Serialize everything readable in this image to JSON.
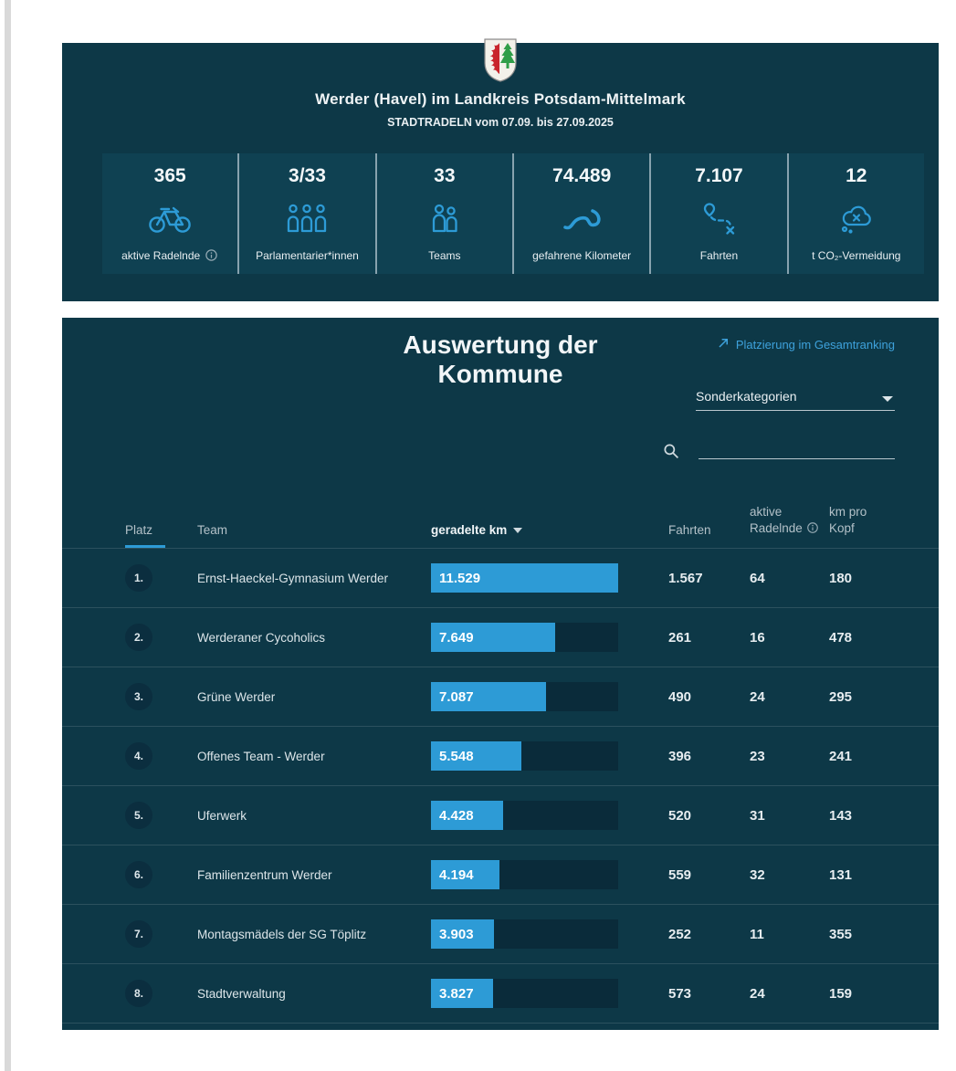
{
  "summary_card": {
    "crest": "werder-havel-coat-of-arms",
    "title": "Werder (Havel) im Landkreis Potsdam-Mittelmark",
    "subtitle": "STADTRADELN vom 07.09. bis 27.09.2025",
    "tiles": [
      {
        "value": "365",
        "label": "aktive Radelnde",
        "icon": "bicycle-icon",
        "info": true
      },
      {
        "value": "3/33",
        "label": "Parlamentarier*innen",
        "icon": "parliamentarians-icon",
        "info": false
      },
      {
        "value": "33",
        "label": "Teams",
        "icon": "teams-icon",
        "info": false
      },
      {
        "value": "74.489",
        "label": "gefahrene Kilometer",
        "icon": "road-icon",
        "info": false
      },
      {
        "value": "7.107",
        "label": "Fahrten",
        "icon": "route-icon",
        "info": false
      },
      {
        "value": "12",
        "label": "t CO₂-Vermeidung",
        "icon": "co2-cloud-icon",
        "info": false
      }
    ]
  },
  "ranking_card": {
    "title": "Auswertung der Kommune",
    "gesamtranking_link": "Platzierung im Gesamtranking",
    "category_select_value": "Sonderkategorien",
    "search_value": "",
    "table": {
      "headers": {
        "platz": "Platz",
        "team": "Team",
        "km": "geradelte km",
        "fahrten": "Fahrten",
        "aktive_line1": "aktive",
        "aktive_line2": "Radelnde",
        "kmprokopf_line1": "km pro",
        "kmprokopf_line2": "Kopf"
      },
      "max_km": 11529,
      "rows": [
        {
          "platz": "1.",
          "team": "Ernst-Haeckel-Gymnasium Werder",
          "km_label": "11.529",
          "km": 11529,
          "fahrten": "1.567",
          "aktive_radelnde": "64",
          "km_pro_kopf": "180"
        },
        {
          "platz": "2.",
          "team": "Werderaner Cycoholics",
          "km_label": "7.649",
          "km": 7649,
          "fahrten": "261",
          "aktive_radelnde": "16",
          "km_pro_kopf": "478"
        },
        {
          "platz": "3.",
          "team": "Grüne Werder",
          "km_label": "7.087",
          "km": 7087,
          "fahrten": "490",
          "aktive_radelnde": "24",
          "km_pro_kopf": "295"
        },
        {
          "platz": "4.",
          "team": "Offenes Team - Werder",
          "km_label": "5.548",
          "km": 5548,
          "fahrten": "396",
          "aktive_radelnde": "23",
          "km_pro_kopf": "241"
        },
        {
          "platz": "5.",
          "team": "Uferwerk",
          "km_label": "4.428",
          "km": 4428,
          "fahrten": "520",
          "aktive_radelnde": "31",
          "km_pro_kopf": "143"
        },
        {
          "platz": "6.",
          "team": "Familienzentrum Werder",
          "km_label": "4.194",
          "km": 4194,
          "fahrten": "559",
          "aktive_radelnde": "32",
          "km_pro_kopf": "131"
        },
        {
          "platz": "7.",
          "team": "Montagsmädels der SG Töplitz",
          "km_label": "3.903",
          "km": 3903,
          "fahrten": "252",
          "aktive_radelnde": "11",
          "km_pro_kopf": "355"
        },
        {
          "platz": "8.",
          "team": "Stadtverwaltung",
          "km_label": "3.827",
          "km": 3827,
          "fahrten": "573",
          "aktive_radelnde": "24",
          "km_pro_kopf": "159"
        }
      ]
    }
  }
}
